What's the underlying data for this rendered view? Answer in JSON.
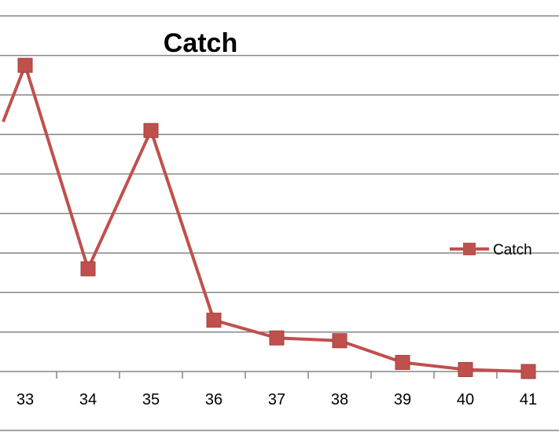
{
  "chart_data": {
    "type": "line",
    "title": "Catch",
    "xlabel": "",
    "ylabel": "",
    "categories": [
      "33",
      "34",
      "35",
      "36",
      "37",
      "38",
      "39",
      "40",
      "41"
    ],
    "series": [
      {
        "name": "Catch",
        "color": "#c0504d",
        "marker": "square",
        "values": [
          7.75,
          2.6,
          6.1,
          1.3,
          0.85,
          0.78,
          0.23,
          0.05,
          0.0
        ]
      }
    ],
    "ylim": [
      0,
      9.4
    ],
    "grid": true,
    "legend_position": "right"
  }
}
